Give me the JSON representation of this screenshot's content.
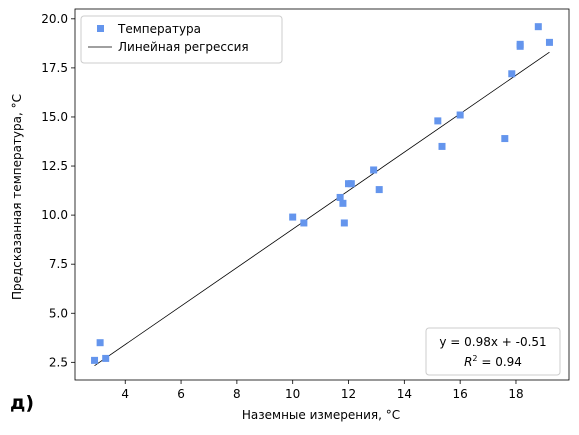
{
  "panel_label": "д)",
  "annotation": {
    "equation": "y = 0.98x + -0.51",
    "r2_prefix": "R",
    "r2_exp": "2",
    "r2_suffix": " = 0.94"
  },
  "chart_data": {
    "type": "scatter",
    "xlabel": "Наземные измерения, °C",
    "ylabel": "Предсказанная температура, °C",
    "xlim": [
      2.2,
      19.9
    ],
    "ylim": [
      1.6,
      20.5
    ],
    "xticks": [
      4,
      6,
      8,
      10,
      12,
      14,
      16,
      18
    ],
    "xtick_labels": [
      "4",
      "6",
      "8",
      "10",
      "12",
      "14",
      "16",
      "18"
    ],
    "yticks": [
      2.5,
      5.0,
      7.5,
      10.0,
      12.5,
      15.0,
      17.5,
      20.0
    ],
    "ytick_labels": [
      "2.5",
      "5.0",
      "7.5",
      "10.0",
      "12.5",
      "15.0",
      "17.5",
      "20.0"
    ],
    "legend_position": "top-left",
    "grid": false,
    "series": [
      {
        "name": "Температура",
        "kind": "scatter",
        "marker": "square",
        "color": "#6495ED",
        "points": [
          [
            2.9,
            2.6
          ],
          [
            3.1,
            3.5
          ],
          [
            3.3,
            2.7
          ],
          [
            10.0,
            9.9
          ],
          [
            10.4,
            9.6
          ],
          [
            11.7,
            10.9
          ],
          [
            11.8,
            10.6
          ],
          [
            11.85,
            9.6
          ],
          [
            12.0,
            11.6
          ],
          [
            12.1,
            11.6
          ],
          [
            12.9,
            12.3
          ],
          [
            13.1,
            11.3
          ],
          [
            15.2,
            14.8
          ],
          [
            15.35,
            13.5
          ],
          [
            16.0,
            15.1
          ],
          [
            17.6,
            13.9
          ],
          [
            17.85,
            17.2
          ],
          [
            18.15,
            18.6
          ],
          [
            18.15,
            18.7
          ],
          [
            18.8,
            19.6
          ],
          [
            19.2,
            18.8
          ]
        ]
      },
      {
        "name": "Линейная регрессия",
        "kind": "line",
        "color": "#000000",
        "points": [
          [
            2.9,
            2.33
          ],
          [
            19.2,
            18.3
          ]
        ]
      }
    ]
  }
}
